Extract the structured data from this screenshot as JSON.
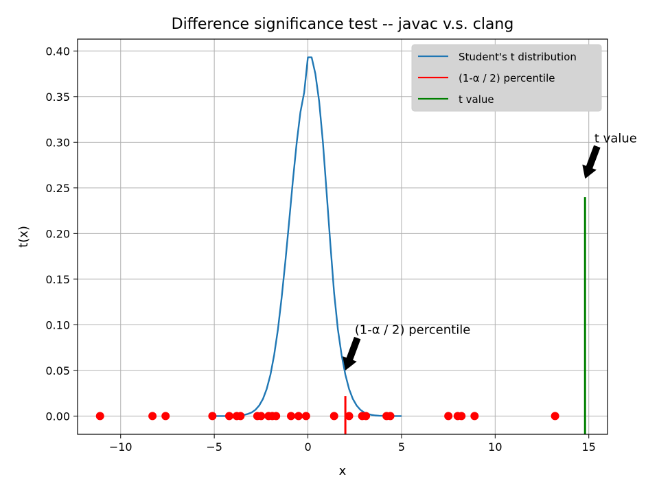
{
  "chart_data": {
    "type": "line",
    "title": "Difference significance test -- javac v.s. clang",
    "xlabel": "x",
    "ylabel": "t(x)",
    "xlim": [
      -12.3,
      16.0
    ],
    "ylim": [
      -0.02,
      0.413
    ],
    "x_ticks": [
      -10,
      -5,
      0,
      5,
      10,
      15
    ],
    "x_tick_labels": [
      "−10",
      "−5",
      "0",
      "5",
      "10",
      "15"
    ],
    "y_ticks": [
      0.0,
      0.05,
      0.1,
      0.15,
      0.2,
      0.25,
      0.3,
      0.35,
      0.4
    ],
    "y_tick_labels": [
      "0.00",
      "0.05",
      "0.10",
      "0.15",
      "0.20",
      "0.25",
      "0.30",
      "0.35",
      "0.40"
    ],
    "grid": true,
    "legend_position": "top-right",
    "series": [
      {
        "name": "Student's t distribution",
        "kind": "line",
        "color": "#1f77b4",
        "x": [
          -5.0,
          -4.8,
          -4.6,
          -4.4,
          -4.2,
          -4.0,
          -3.8,
          -3.6,
          -3.4,
          -3.2,
          -3.0,
          -2.8,
          -2.6,
          -2.4,
          -2.2,
          -2.0,
          -1.8,
          -1.6,
          -1.4,
          -1.2,
          -1.0,
          -0.8,
          -0.6,
          -0.4,
          -0.2,
          0.0,
          0.2,
          0.4,
          0.6,
          0.8,
          1.0,
          1.2,
          1.4,
          1.6,
          1.8,
          2.0,
          2.2,
          2.4,
          2.6,
          2.8,
          3.0,
          3.2,
          3.4,
          3.6,
          3.8,
          4.0,
          4.2,
          4.4,
          4.6,
          4.8,
          5.0
        ],
        "y": [
          0.0,
          0.0,
          0.0,
          0.0,
          0.0001,
          0.0002,
          0.0004,
          0.0007,
          0.0013,
          0.0023,
          0.004,
          0.0069,
          0.0116,
          0.0188,
          0.0297,
          0.0454,
          0.067,
          0.0951,
          0.1298,
          0.1701,
          0.214,
          0.2584,
          0.2994,
          0.3329,
          0.3545,
          0.393,
          0.393,
          0.375,
          0.345,
          0.3,
          0.245,
          0.188,
          0.135,
          0.095,
          0.067,
          0.0454,
          0.0297,
          0.0188,
          0.0116,
          0.0069,
          0.004,
          0.0023,
          0.0013,
          0.0007,
          0.0004,
          0.0002,
          0.0001,
          0.0,
          0.0,
          0.0,
          0.0
        ]
      },
      {
        "name": "(1-α / 2) percentile",
        "kind": "vline",
        "color": "#ff0000",
        "x": 2.0,
        "y_range": [
          -0.02,
          0.022
        ]
      },
      {
        "name": "t value",
        "kind": "vline",
        "color": "#008000",
        "x": 14.8,
        "y_range": [
          -0.02,
          0.24
        ]
      },
      {
        "name": "",
        "kind": "scatter",
        "color": "#ff0000",
        "x": [
          -11.1,
          -8.3,
          -7.6,
          -5.1,
          -4.2,
          -3.8,
          -3.6,
          -2.7,
          -2.5,
          -2.1,
          -1.9,
          -1.7,
          -0.9,
          -0.5,
          -0.1,
          1.4,
          2.2,
          2.9,
          3.1,
          4.2,
          4.4,
          7.5,
          8.0,
          8.2,
          8.9,
          13.2
        ],
        "y": [
          0,
          0,
          0,
          0,
          0,
          0,
          0,
          0,
          0,
          0,
          0,
          0,
          0,
          0,
          0,
          0,
          0,
          0,
          0,
          0,
          0,
          0,
          0,
          0,
          0,
          0
        ]
      }
    ],
    "annotations": [
      {
        "text": "(1-α / 2) percentile",
        "arrow_to": [
          2.0,
          0.05
        ],
        "text_at": [
          2.5,
          0.09
        ]
      },
      {
        "text": "t value",
        "arrow_to": [
          14.8,
          0.26
        ],
        "text_at": [
          15.3,
          0.3
        ]
      }
    ]
  }
}
